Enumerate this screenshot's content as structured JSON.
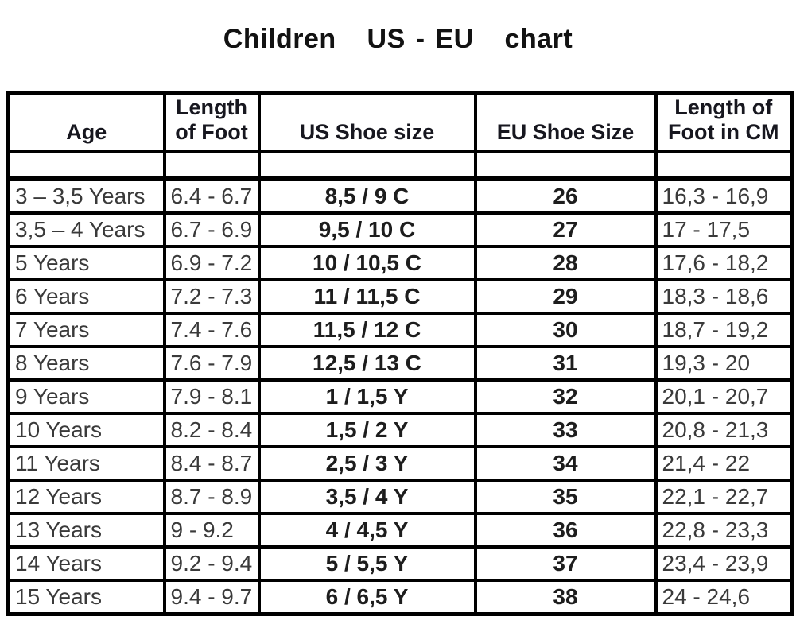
{
  "title": "Children   US - EU   chart",
  "colors": {
    "background": "#ffffff",
    "border": "#000000",
    "title_text": "#121212",
    "header_text": "#17171f",
    "data_text": "#3a3a3a",
    "bold_text": "#1d1d1d"
  },
  "chart_data": {
    "type": "table",
    "title": "Children   US - EU   chart",
    "columns": [
      "Age",
      "Length\nof Foot",
      "US Shoe size",
      "EU Shoe Size",
      "Length of\nFoot in CM"
    ],
    "blank_row_after_header": true,
    "rows": [
      [
        "3 – 3,5 Years",
        "6.4 - 6.7",
        "8,5 / 9 C",
        "26",
        "16,3 - 16,9"
      ],
      [
        "3,5 – 4 Years",
        "6.7 - 6.9",
        "9,5 / 10 C",
        "27",
        "17 - 17,5"
      ],
      [
        "5 Years",
        "6.9 - 7.2",
        "10 / 10,5 C",
        "28",
        "17,6 - 18,2"
      ],
      [
        "6 Years",
        "7.2 - 7.3",
        "11 / 11,5 C",
        "29",
        "18,3 - 18,6"
      ],
      [
        "7 Years",
        "7.4 - 7.6",
        "11,5 / 12 C",
        "30",
        "18,7 - 19,2"
      ],
      [
        "8 Years",
        "7.6 - 7.9",
        "12,5 / 13 C",
        "31",
        "19,3 - 20"
      ],
      [
        "9 Years",
        "7.9 - 8.1",
        "1 / 1,5 Y",
        "32",
        "20,1 - 20,7"
      ],
      [
        "10 Years",
        "8.2 - 8.4",
        "1,5 / 2 Y",
        "33",
        "20,8 - 21,3"
      ],
      [
        "11 Years",
        "8.4 - 8.7",
        "2,5 / 3 Y",
        "34",
        "21,4 - 22"
      ],
      [
        "12 Years",
        "8.7 - 8.9",
        "3,5 / 4 Y",
        "35",
        "22,1 - 22,7"
      ],
      [
        "13 Years",
        "9 - 9.2",
        "4 / 4,5 Y",
        "36",
        "22,8 - 23,3"
      ],
      [
        "14 Years",
        "9.2 - 9.4",
        "5 / 5,5 Y",
        "37",
        "23,4 - 23,9"
      ],
      [
        "15 Years",
        "9.4 - 9.7",
        "6 / 6,5 Y",
        "38",
        "24 - 24,6"
      ]
    ]
  }
}
